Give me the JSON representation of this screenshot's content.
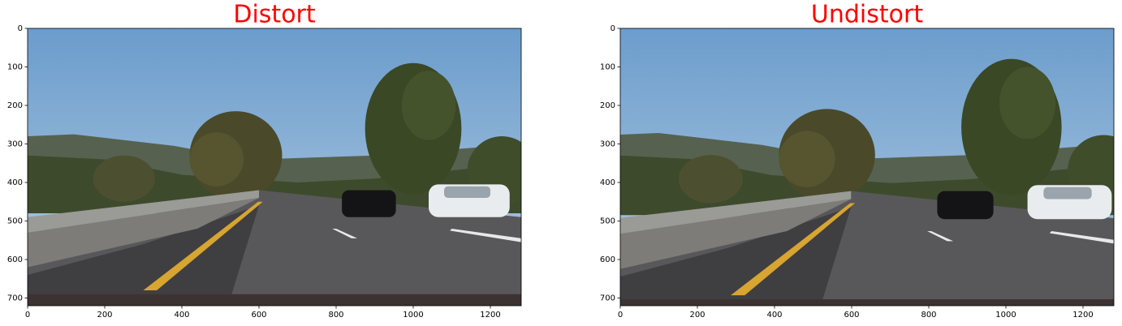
{
  "chart_data": [
    {
      "type": "image",
      "title": "Distort",
      "title_color": "#ff0000",
      "xlim": [
        0,
        1280
      ],
      "ylim": [
        720,
        0
      ],
      "xticks": [
        0,
        200,
        400,
        600,
        800,
        1000,
        1200
      ],
      "yticks": [
        0,
        100,
        200,
        300,
        400,
        500,
        600,
        700
      ]
    },
    {
      "type": "image",
      "title": "Undistort",
      "title_color": "#ff0000",
      "xlim": [
        0,
        1280
      ],
      "ylim": [
        720,
        0
      ],
      "xticks": [
        0,
        200,
        400,
        600,
        800,
        1000,
        1200
      ],
      "yticks": [
        0,
        100,
        200,
        300,
        400,
        500,
        600,
        700
      ]
    }
  ]
}
